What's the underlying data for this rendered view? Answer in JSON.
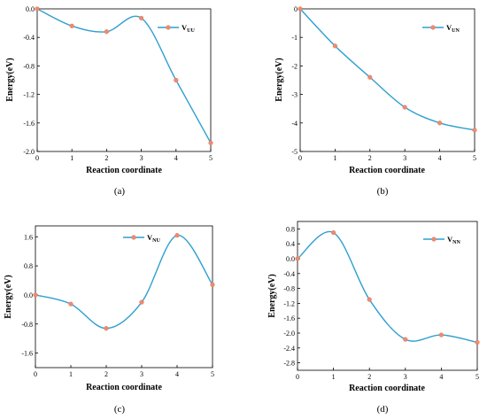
{
  "chart_data": [
    {
      "type": "line",
      "panel_label": "(a)",
      "legend": {
        "name": "V",
        "sub": "UU"
      },
      "xlabel": "Reaction coordinate",
      "ylabel": "Energy(eV)",
      "xlim": [
        0,
        5
      ],
      "ylim": [
        -2.0,
        0.0
      ],
      "xticks": [
        "0",
        "1",
        "2",
        "3",
        "4",
        "5"
      ],
      "yticks": [
        "0.0",
        "-0.4",
        "-0.8",
        "-1.2",
        "-1.6",
        "-2.0"
      ],
      "ytick_values": [
        0.0,
        -0.4,
        -0.8,
        -1.2,
        -1.6,
        -2.0
      ],
      "x": [
        0,
        1,
        2,
        3,
        4,
        5
      ],
      "y": [
        0.0,
        -0.24,
        -0.32,
        -0.13,
        -1.0,
        -1.88
      ]
    },
    {
      "type": "line",
      "panel_label": "(b)",
      "legend": {
        "name": "V",
        "sub": "UN"
      },
      "xlabel": "Reaction coordinate",
      "ylabel": "Energy(eV)",
      "xlim": [
        0,
        5
      ],
      "ylim": [
        -5,
        0
      ],
      "xticks": [
        "0",
        "1",
        "2",
        "3",
        "4",
        "5"
      ],
      "yticks": [
        "0",
        "-1",
        "-2",
        "-3",
        "-4",
        "-5"
      ],
      "ytick_values": [
        0,
        -1,
        -2,
        -3,
        -4,
        -5
      ],
      "x": [
        0,
        1,
        2,
        3,
        4,
        5
      ],
      "y": [
        0.0,
        -1.3,
        -2.4,
        -3.45,
        -4.0,
        -4.25
      ]
    },
    {
      "type": "line",
      "panel_label": "(c)",
      "legend": {
        "name": "V",
        "sub": "NU"
      },
      "xlabel": "Reaction coordinate",
      "ylabel": "Energy(eV)",
      "xlim": [
        0,
        5
      ],
      "ylim": [
        -2.0,
        1.9
      ],
      "xticks": [
        "0",
        "1",
        "2",
        "3",
        "4",
        "5"
      ],
      "yticks": [
        "1.6",
        "0.8",
        "0.0",
        "-0.8",
        "-1.6"
      ],
      "ytick_values": [
        1.6,
        0.8,
        0.0,
        -0.8,
        -1.6
      ],
      "x": [
        0,
        1,
        2,
        3,
        4,
        5
      ],
      "y": [
        0.0,
        -0.25,
        -0.92,
        -0.2,
        1.64,
        0.28
      ]
    },
    {
      "type": "line",
      "panel_label": "(d)",
      "legend": {
        "name": "V",
        "sub": "NN"
      },
      "xlabel": "Reaction coordinate",
      "ylabel": "Energy(eV)",
      "xlim": [
        0,
        5
      ],
      "ylim": [
        -3.0,
        1.0
      ],
      "xticks": [
        "0",
        "1",
        "2",
        "3",
        "4",
        "5"
      ],
      "yticks": [
        "0.8",
        "0.4",
        "0.0",
        "-0.4",
        "-0.8",
        "-1.2",
        "-1.6",
        "-2.0",
        "-2.4",
        "-2.8"
      ],
      "ytick_values": [
        0.8,
        0.4,
        0.0,
        -0.4,
        -0.8,
        -1.2,
        -1.6,
        -2.0,
        -2.4,
        -2.8
      ],
      "x": [
        0,
        1,
        2,
        3,
        4,
        5
      ],
      "y": [
        0.0,
        0.7,
        -1.1,
        -2.17,
        -2.05,
        -2.25
      ]
    }
  ]
}
